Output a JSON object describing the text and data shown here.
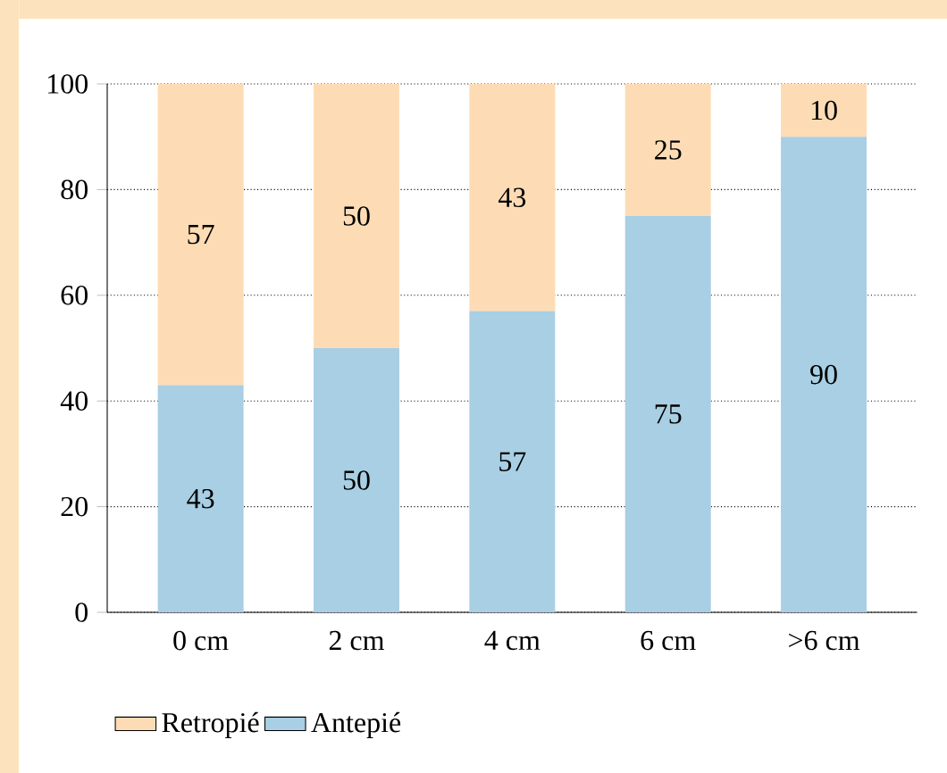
{
  "chart_data": {
    "type": "bar",
    "stacked": true,
    "categories": [
      "0 cm",
      "2 cm",
      "4 cm",
      "6 cm",
      ">6 cm"
    ],
    "series": [
      {
        "name": "Antepié",
        "color": "#a8cfe3",
        "values": [
          43,
          50,
          57,
          75,
          90
        ]
      },
      {
        "name": "Retropié",
        "color": "#fddcb5",
        "values": [
          57,
          50,
          43,
          25,
          10
        ]
      }
    ],
    "ylim": [
      0,
      100
    ],
    "yticks": [
      0,
      20,
      40,
      60,
      80,
      100
    ],
    "grid": "y",
    "legend": "bottom",
    "data_labels": true
  }
}
